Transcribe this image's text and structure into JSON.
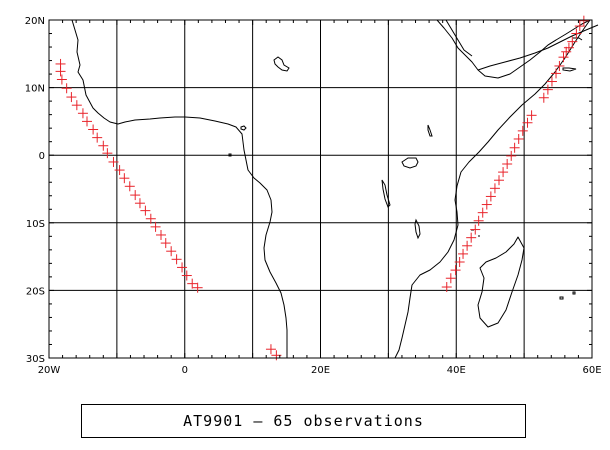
{
  "map": {
    "x_ticks": [
      {
        "lon": -20,
        "label": "20W"
      },
      {
        "lon": 0,
        "label": "0"
      },
      {
        "lon": 20,
        "label": "20E"
      },
      {
        "lon": 40,
        "label": "40E"
      },
      {
        "lon": 60,
        "label": "60E"
      }
    ],
    "y_ticks": [
      {
        "lat": 20,
        "label": "20N"
      },
      {
        "lat": 10,
        "label": "10N"
      },
      {
        "lat": 0,
        "label": "0"
      },
      {
        "lat": -10,
        "label": "10S"
      },
      {
        "lat": -20,
        "label": "20S"
      },
      {
        "lat": -30,
        "label": "30S"
      }
    ],
    "lon_range": [
      -20,
      60
    ],
    "lat_range": [
      -30,
      20
    ],
    "marker_color": "#e8232a"
  },
  "caption": {
    "text": "AT9901 — 65 observations"
  },
  "observations": [
    {
      "lon": -18.3,
      "lat": 13.5
    },
    {
      "lon": -18.3,
      "lat": 12.4
    },
    {
      "lon": -18.1,
      "lat": 11.2
    },
    {
      "lon": -17.4,
      "lat": 9.9
    },
    {
      "lon": -16.7,
      "lat": 8.6
    },
    {
      "lon": -15.9,
      "lat": 7.4
    },
    {
      "lon": -15.0,
      "lat": 6.2
    },
    {
      "lon": -14.4,
      "lat": 5.0
    },
    {
      "lon": -13.5,
      "lat": 3.8
    },
    {
      "lon": -12.9,
      "lat": 2.6
    },
    {
      "lon": -12.0,
      "lat": 1.4
    },
    {
      "lon": -11.4,
      "lat": 0.3
    },
    {
      "lon": -10.5,
      "lat": -1.0
    },
    {
      "lon": -9.6,
      "lat": -2.2
    },
    {
      "lon": -8.9,
      "lat": -3.4
    },
    {
      "lon": -8.1,
      "lat": -4.6
    },
    {
      "lon": -7.3,
      "lat": -5.9
    },
    {
      "lon": -6.6,
      "lat": -7.1
    },
    {
      "lon": -5.8,
      "lat": -8.2
    },
    {
      "lon": -5.0,
      "lat": -9.4
    },
    {
      "lon": -4.3,
      "lat": -10.6
    },
    {
      "lon": -3.5,
      "lat": -11.8
    },
    {
      "lon": -2.8,
      "lat": -13.0
    },
    {
      "lon": -2.0,
      "lat": -14.2
    },
    {
      "lon": -1.2,
      "lat": -15.4
    },
    {
      "lon": -0.4,
      "lat": -16.6
    },
    {
      "lon": 0.3,
      "lat": -17.8
    },
    {
      "lon": 1.1,
      "lat": -19.0
    },
    {
      "lon": 1.9,
      "lat": -19.6
    },
    {
      "lon": 12.7,
      "lat": -28.7
    },
    {
      "lon": 13.5,
      "lat": -29.6
    },
    {
      "lon": 38.6,
      "lat": -19.5
    },
    {
      "lon": 39.2,
      "lat": -18.2
    },
    {
      "lon": 39.9,
      "lat": -17.0
    },
    {
      "lon": 40.5,
      "lat": -15.8
    },
    {
      "lon": 41.0,
      "lat": -14.6
    },
    {
      "lon": 41.6,
      "lat": -13.4
    },
    {
      "lon": 42.2,
      "lat": -12.2
    },
    {
      "lon": 42.8,
      "lat": -11.0
    },
    {
      "lon": 43.3,
      "lat": -9.7
    },
    {
      "lon": 43.9,
      "lat": -8.5
    },
    {
      "lon": 44.5,
      "lat": -7.3
    },
    {
      "lon": 45.1,
      "lat": -6.1
    },
    {
      "lon": 45.7,
      "lat": -4.9
    },
    {
      "lon": 46.3,
      "lat": -3.7
    },
    {
      "lon": 46.9,
      "lat": -2.5
    },
    {
      "lon": 47.5,
      "lat": -1.3
    },
    {
      "lon": 48.1,
      "lat": -0.1
    },
    {
      "lon": 48.6,
      "lat": 1.1
    },
    {
      "lon": 49.2,
      "lat": 2.4
    },
    {
      "lon": 49.8,
      "lat": 3.6
    },
    {
      "lon": 50.5,
      "lat": 4.8
    },
    {
      "lon": 51.1,
      "lat": 5.9
    },
    {
      "lon": 52.9,
      "lat": 8.5
    },
    {
      "lon": 53.5,
      "lat": 9.7
    },
    {
      "lon": 54.1,
      "lat": 10.9
    },
    {
      "lon": 54.7,
      "lat": 12.1
    },
    {
      "lon": 55.2,
      "lat": 13.2
    },
    {
      "lon": 55.8,
      "lat": 14.5
    },
    {
      "lon": 56.2,
      "lat": 15.3
    },
    {
      "lon": 56.6,
      "lat": 15.9
    },
    {
      "lon": 57.1,
      "lat": 16.8
    },
    {
      "lon": 57.7,
      "lat": 18.0
    },
    {
      "lon": 58.2,
      "lat": 19.1
    },
    {
      "lon": 58.8,
      "lat": 19.9
    }
  ]
}
